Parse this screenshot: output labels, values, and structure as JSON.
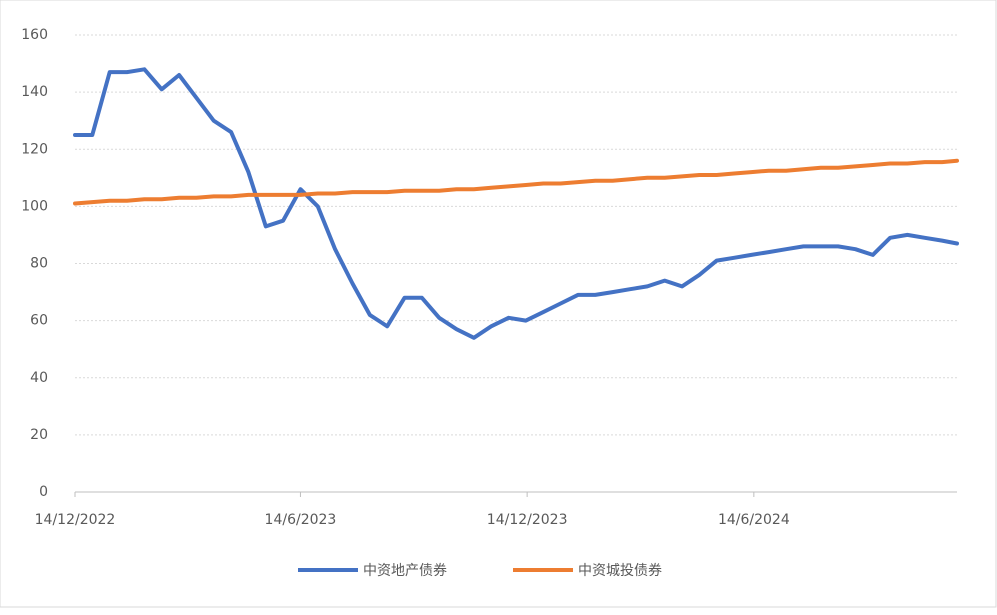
{
  "chart_data": {
    "type": "line",
    "x": [
      "14/12/2022",
      "28/12/2022",
      "11/1/2023",
      "25/1/2023",
      "8/2/2023",
      "22/2/2023",
      "8/3/2023",
      "22/3/2023",
      "5/4/2023",
      "19/4/2023",
      "3/5/2023",
      "17/5/2023",
      "31/5/2023",
      "14/6/2023",
      "28/6/2023",
      "12/7/2023",
      "26/7/2023",
      "9/8/2023",
      "23/8/2023",
      "6/9/2023",
      "20/9/2023",
      "4/10/2023",
      "18/10/2023",
      "1/11/2023",
      "15/11/2023",
      "29/11/2023",
      "13/12/2023",
      "27/12/2023",
      "10/1/2024",
      "24/1/2024",
      "7/2/2024",
      "21/2/2024",
      "6/3/2024",
      "20/3/2024",
      "3/4/2024",
      "17/4/2024",
      "1/5/2024",
      "15/5/2024",
      "29/5/2024",
      "12/6/2024",
      "26/6/2024",
      "10/7/2024",
      "24/7/2024",
      "7/8/2024",
      "21/8/2024",
      "4/9/2024",
      "18/9/2024",
      "2/10/2024",
      "16/10/2024",
      "30/10/2024",
      "13/11/2024",
      "25/11/2024"
    ],
    "series": [
      {
        "name": "中资地产债券",
        "color": "#4472c4",
        "values": [
          125,
          125,
          147,
          147,
          148,
          141,
          146,
          138,
          130,
          126,
          112,
          93,
          95,
          106,
          100,
          85,
          73,
          62,
          58,
          68,
          68,
          61,
          57,
          54,
          58,
          61,
          60,
          63,
          66,
          69,
          69,
          70,
          71,
          72,
          74,
          72,
          76,
          81,
          82,
          83,
          84,
          85,
          86,
          86,
          86,
          85,
          83,
          89,
          90,
          89,
          88,
          87
        ]
      },
      {
        "name": "中资城投债券",
        "color": "#ed7d31",
        "values": [
          101,
          101.5,
          102,
          102,
          102.5,
          102.5,
          103,
          103,
          103.5,
          103.5,
          104,
          104,
          104,
          104,
          104.5,
          104.5,
          105,
          105,
          105,
          105.5,
          105.5,
          105.5,
          106,
          106,
          106.5,
          107,
          107.5,
          108,
          108,
          108.5,
          109,
          109,
          109.5,
          110,
          110,
          110.5,
          111,
          111,
          111.5,
          112,
          112.5,
          112.5,
          113,
          113.5,
          113.5,
          114,
          114.5,
          115,
          115,
          115.5,
          115.5,
          116
        ]
      }
    ],
    "xlim": [
      "14/12/2022",
      "25/11/2024"
    ],
    "xticks": [
      "14/12/2022",
      "14/6/2023",
      "14/12/2023",
      "14/6/2024"
    ],
    "ylim": [
      0,
      160
    ],
    "yticks": [
      0,
      20,
      40,
      60,
      80,
      100,
      120,
      140,
      160
    ],
    "grid": true
  }
}
